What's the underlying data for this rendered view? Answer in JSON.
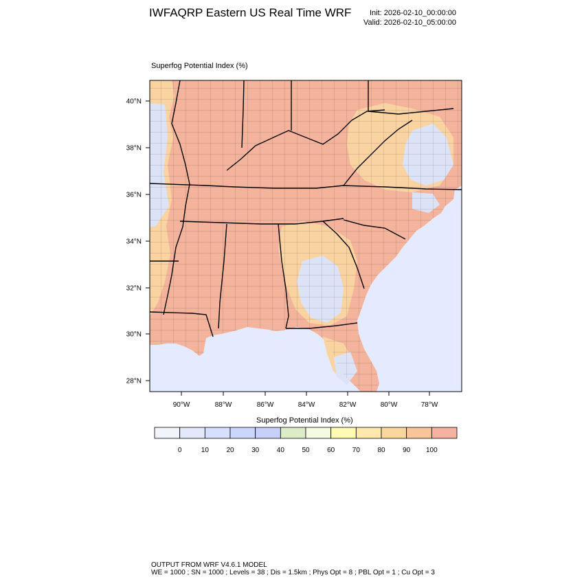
{
  "header": {
    "title": "IWFAQRP Eastern US Real Time WRF",
    "init": "Init: 2026-02-10_00:00:00",
    "valid": "Valid: 2026-02-10_05:00:00"
  },
  "field": {
    "title": "Superfog Potential Index   (%)"
  },
  "map": {
    "lon_ticks": [
      "90°W",
      "88°W",
      "86°W",
      "84°W",
      "82°W",
      "80°W",
      "78°W"
    ],
    "lat_ticks": [
      "40°N",
      "38°N",
      "36°N",
      "34°N",
      "32°N",
      "30°N",
      "28°N"
    ],
    "colors": {
      "ocean": "#e4eaff",
      "land_high": "#f4b49b",
      "land_mid": "#f9d3a0",
      "land_low": "#dce3f7",
      "border": "#000000"
    }
  },
  "colorbar": {
    "title": "Superfog Potential Index  (%)",
    "labels": [
      "0",
      "10",
      "20",
      "30",
      "40",
      "50",
      "60",
      "70",
      "80",
      "90",
      "100"
    ],
    "colors": [
      "#f2f4fb",
      "#e3e8fb",
      "#d6dffd",
      "#cbd6fb",
      "#c6d0fb",
      "#dbecc7",
      "#f5fbe0",
      "#fffbb0",
      "#fee8aa",
      "#fbd79c",
      "#f9c597",
      "#f6b29e"
    ]
  },
  "footer": {
    "line1": "OUTPUT FROM WRF V4.6.1 MODEL",
    "line2": "WE = 1000 ; SN = 1000 ; Levels = 38 ; Dis = 1.5km ; Phys Opt = 8 ; PBL Opt = 1 ; Cu Opt = 3"
  }
}
